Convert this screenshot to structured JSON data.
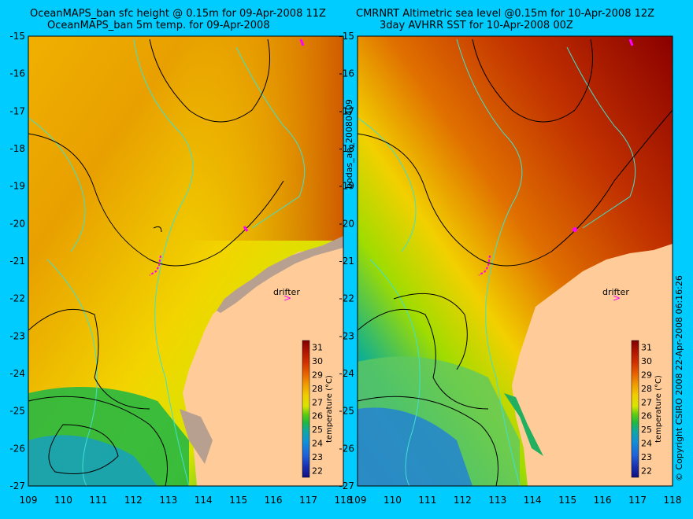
{
  "left_panel": {
    "title_line1": "OceanMAPS_ban sfc height @ 0.15m for 09-Apr-2008 11Z",
    "title_line2": "OceanMAPS_ban 5m temp. for 09-Apr-2008",
    "drifter_label": "drifter"
  },
  "right_panel": {
    "title_line1": "CMRNRT Altimetric sea level  @0.15m  for 10-Apr-2008 12Z",
    "title_line2": "3day AVHRR SST for 10-Apr-2008 00Z",
    "drifter_label": "drifter"
  },
  "side_label": "bodas_an_20080409",
  "copyright": "© Copyright CSIRO 2008   22-Apr-2008 06:16:26",
  "latitude_ticks": [
    "-15",
    "-16",
    "-17",
    "-18",
    "-19",
    "-20",
    "-21",
    "-22",
    "-23",
    "-24",
    "-25",
    "-26",
    "-27"
  ],
  "longitude_ticks": [
    "109",
    "110",
    "111",
    "112",
    "113",
    "114",
    "115",
    "116",
    "117",
    "118"
  ],
  "colorbar": {
    "label": "temperature (°C)",
    "ticks": [
      "31",
      "30",
      "29",
      "28",
      "27",
      "26",
      "25",
      "24",
      "23",
      "22"
    ],
    "colors": [
      "#800000",
      "#b01500",
      "#d03000",
      "#e05a00",
      "#ec8a00",
      "#f0b000",
      "#f2d500",
      "#d8e400",
      "#8ed400",
      "#30c030",
      "#10b080",
      "#10a0c8",
      "#2070e0",
      "#1838b8",
      "#101080"
    ]
  },
  "colors": {
    "background": "#00ccff",
    "land": "#ffcc99",
    "contour_cyan": "#40e0d0",
    "contour_black": "#000000",
    "drifter_magenta": "#ff00ff"
  }
}
